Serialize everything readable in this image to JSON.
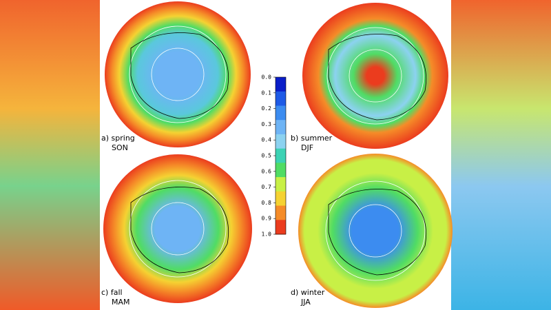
{
  "panels": [
    {
      "label": "a) spring",
      "season": "SON"
    },
    {
      "label": "b) summer",
      "season": "DJF"
    },
    {
      "label": "c) fall",
      "season": "MAM"
    },
    {
      "label": "d) winter",
      "season": "JJA"
    }
  ],
  "colorbar": {
    "ticks": [
      {
        "value": 0,
        "label": "0.0"
      },
      0.1,
      0.2,
      0.3,
      0.4,
      0.5,
      0.6,
      0.7,
      0.8,
      0.9,
      {
        "value": 1,
        "label": "1.0"
      }
    ],
    "colors": [
      "#0a1ec8",
      "#1e5ae6",
      "#3c8cf0",
      "#6eb4f5",
      "#8cd2f0",
      "#3cd2b4",
      "#50dc64",
      "#c8f046",
      "#f5d232",
      "#f58c28",
      "#eb3c1e"
    ]
  }
}
